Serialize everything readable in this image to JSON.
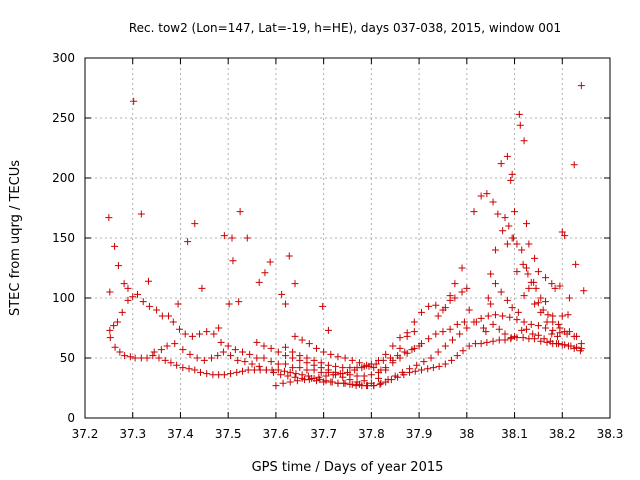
{
  "chart_data": {
    "type": "scatter",
    "title": "Rec. tow2 (Lon=147, Lat=-19, h=HE), days 037-038, 2015, window 001",
    "xlabel": "GPS time / Days of year 2015",
    "ylabel": "STEC from uqrg / TECUs",
    "xlim": [
      37.2,
      38.3
    ],
    "ylim": [
      0,
      300
    ],
    "x_ticks": [
      "37.2",
      "37.3",
      "37.4",
      "37.5",
      "37.6",
      "37.7",
      "37.8",
      "37.9",
      "38",
      "38.1",
      "38.2",
      "38.3"
    ],
    "y_ticks": [
      "0",
      "50",
      "100",
      "150",
      "200",
      "250",
      "300"
    ],
    "grid": true,
    "legend": "none",
    "marker": "plus",
    "point_color": "#cc0000",
    "points": [
      [
        37.25,
        167
      ],
      [
        37.252,
        105
      ],
      [
        37.262,
        143
      ],
      [
        37.27,
        127
      ],
      [
        37.282,
        112
      ],
      [
        37.29,
        108
      ],
      [
        37.302,
        264
      ],
      [
        37.318,
        170
      ],
      [
        37.333,
        114
      ],
      [
        37.395,
        95
      ],
      [
        37.415,
        147
      ],
      [
        37.43,
        162
      ],
      [
        37.445,
        108
      ],
      [
        37.48,
        75
      ],
      [
        37.492,
        152
      ],
      [
        37.502,
        95
      ],
      [
        37.508,
        150
      ],
      [
        37.51,
        131
      ],
      [
        37.522,
        97
      ],
      [
        37.525,
        172
      ],
      [
        37.54,
        150
      ],
      [
        37.565,
        113
      ],
      [
        37.577,
        121
      ],
      [
        37.588,
        130
      ],
      [
        37.612,
        103
      ],
      [
        37.62,
        95
      ],
      [
        37.628,
        135
      ],
      [
        37.64,
        112
      ],
      [
        37.698,
        93
      ],
      [
        37.71,
        73
      ],
      [
        37.252,
        73
      ],
      [
        37.26,
        77
      ],
      [
        37.268,
        80
      ],
      [
        37.278,
        88
      ],
      [
        37.29,
        98
      ],
      [
        37.3,
        101
      ],
      [
        37.31,
        103
      ],
      [
        37.322,
        97
      ],
      [
        37.335,
        93
      ],
      [
        37.35,
        90
      ],
      [
        37.362,
        85
      ],
      [
        37.375,
        85
      ],
      [
        37.385,
        80
      ],
      [
        37.398,
        74
      ],
      [
        37.41,
        70
      ],
      [
        37.425,
        68
      ],
      [
        37.44,
        70
      ],
      [
        37.455,
        72
      ],
      [
        37.47,
        70
      ],
      [
        37.485,
        63
      ],
      [
        37.5,
        60
      ],
      [
        37.515,
        57
      ],
      [
        37.53,
        55
      ],
      [
        37.545,
        53
      ],
      [
        37.56,
        50
      ],
      [
        37.575,
        50
      ],
      [
        37.59,
        47
      ],
      [
        37.605,
        45
      ],
      [
        37.62,
        45
      ],
      [
        37.635,
        42
      ],
      [
        37.65,
        42
      ],
      [
        37.665,
        40
      ],
      [
        37.68,
        40
      ],
      [
        37.695,
        38
      ],
      [
        37.71,
        38
      ],
      [
        37.725,
        36
      ],
      [
        37.74,
        34
      ],
      [
        37.755,
        32
      ],
      [
        37.77,
        30
      ],
      [
        37.785,
        31
      ],
      [
        37.8,
        29
      ],
      [
        37.815,
        33
      ],
      [
        37.83,
        40
      ],
      [
        37.845,
        48
      ],
      [
        37.86,
        58
      ],
      [
        37.875,
        68
      ],
      [
        37.89,
        80
      ],
      [
        37.905,
        88
      ],
      [
        37.92,
        93
      ],
      [
        37.935,
        94
      ],
      [
        37.95,
        90
      ],
      [
        37.965,
        102
      ],
      [
        37.975,
        112
      ],
      [
        37.99,
        125
      ],
      [
        38.0,
        108
      ],
      [
        38.015,
        172
      ],
      [
        38.03,
        185
      ],
      [
        38.042,
        187
      ],
      [
        38.055,
        180
      ],
      [
        38.065,
        170
      ],
      [
        38.075,
        156
      ],
      [
        38.085,
        145
      ],
      [
        38.095,
        150
      ],
      [
        38.105,
        145
      ],
      [
        38.115,
        140
      ],
      [
        38.125,
        125
      ],
      [
        38.135,
        113
      ],
      [
        38.145,
        108
      ],
      [
        38.155,
        100
      ],
      [
        38.165,
        97
      ],
      [
        38.18,
        85
      ],
      [
        38.195,
        75
      ],
      [
        38.205,
        72
      ],
      [
        38.215,
        72
      ],
      [
        38.23,
        68
      ],
      [
        38.24,
        62
      ],
      [
        37.253,
        67
      ],
      [
        37.263,
        59
      ],
      [
        37.273,
        55
      ],
      [
        37.283,
        52
      ],
      [
        37.295,
        51
      ],
      [
        37.305,
        50
      ],
      [
        37.318,
        50
      ],
      [
        37.33,
        50
      ],
      [
        37.342,
        52
      ],
      [
        37.355,
        50
      ],
      [
        37.368,
        48
      ],
      [
        37.38,
        46
      ],
      [
        37.392,
        44
      ],
      [
        37.405,
        42
      ],
      [
        37.418,
        41
      ],
      [
        37.43,
        40
      ],
      [
        37.442,
        38
      ],
      [
        37.455,
        37
      ],
      [
        37.468,
        36
      ],
      [
        37.48,
        36
      ],
      [
        37.492,
        36
      ],
      [
        37.505,
        37
      ],
      [
        37.518,
        38
      ],
      [
        37.53,
        39
      ],
      [
        37.542,
        40
      ],
      [
        37.555,
        40
      ],
      [
        37.567,
        40
      ],
      [
        37.58,
        40
      ],
      [
        37.592,
        40
      ],
      [
        37.605,
        40
      ],
      [
        37.618,
        39
      ],
      [
        37.63,
        38
      ],
      [
        37.642,
        37
      ],
      [
        37.655,
        36
      ],
      [
        37.668,
        35
      ],
      [
        37.68,
        33
      ],
      [
        37.692,
        32
      ],
      [
        37.705,
        31
      ],
      [
        37.718,
        30
      ],
      [
        37.73,
        29
      ],
      [
        37.742,
        29
      ],
      [
        37.755,
        28
      ],
      [
        37.768,
        27
      ],
      [
        37.78,
        27
      ],
      [
        37.792,
        27
      ],
      [
        37.805,
        27
      ],
      [
        37.818,
        28
      ],
      [
        37.83,
        30
      ],
      [
        37.842,
        32
      ],
      [
        37.855,
        34
      ],
      [
        37.868,
        36
      ],
      [
        37.88,
        38
      ],
      [
        37.892,
        39
      ],
      [
        37.905,
        40
      ],
      [
        37.918,
        41
      ],
      [
        37.93,
        42
      ],
      [
        37.942,
        43
      ],
      [
        37.955,
        45
      ],
      [
        37.968,
        48
      ],
      [
        37.98,
        52
      ],
      [
        37.992,
        56
      ],
      [
        38.005,
        60
      ],
      [
        38.018,
        62
      ],
      [
        38.03,
        62
      ],
      [
        38.042,
        63
      ],
      [
        38.055,
        64
      ],
      [
        38.068,
        65
      ],
      [
        38.08,
        65
      ],
      [
        38.092,
        66
      ],
      [
        38.105,
        67
      ],
      [
        38.118,
        67
      ],
      [
        38.13,
        66
      ],
      [
        38.142,
        66
      ],
      [
        38.155,
        64
      ],
      [
        38.168,
        63
      ],
      [
        38.18,
        62
      ],
      [
        38.192,
        62
      ],
      [
        38.205,
        61
      ],
      [
        38.218,
        60
      ],
      [
        38.23,
        59
      ],
      [
        38.24,
        58
      ],
      [
        37.345,
        55
      ],
      [
        37.36,
        57
      ],
      [
        37.372,
        60
      ],
      [
        37.388,
        62
      ],
      [
        37.405,
        57
      ],
      [
        37.42,
        53
      ],
      [
        37.435,
        50
      ],
      [
        37.45,
        48
      ],
      [
        37.465,
        50
      ],
      [
        37.478,
        52
      ],
      [
        37.49,
        55
      ],
      [
        37.505,
        52
      ],
      [
        37.52,
        48
      ],
      [
        37.535,
        47
      ],
      [
        37.55,
        45
      ],
      [
        37.565,
        43
      ],
      [
        37.58,
        40
      ],
      [
        37.595,
        38
      ],
      [
        37.61,
        36
      ],
      [
        37.625,
        35
      ],
      [
        37.64,
        34
      ],
      [
        37.655,
        33
      ],
      [
        37.67,
        32
      ],
      [
        37.685,
        31
      ],
      [
        37.7,
        30
      ],
      [
        37.715,
        30
      ],
      [
        37.73,
        29
      ],
      [
        37.745,
        29
      ],
      [
        37.76,
        28
      ],
      [
        37.775,
        28
      ],
      [
        37.79,
        27
      ],
      [
        37.805,
        27
      ],
      [
        37.82,
        29
      ],
      [
        37.835,
        32
      ],
      [
        37.85,
        35
      ],
      [
        37.865,
        38
      ],
      [
        37.88,
        41
      ],
      [
        37.895,
        44
      ],
      [
        37.91,
        47
      ],
      [
        37.925,
        50
      ],
      [
        37.94,
        55
      ],
      [
        37.955,
        60
      ],
      [
        37.97,
        65
      ],
      [
        37.985,
        70
      ],
      [
        38.0,
        75
      ],
      [
        38.015,
        80
      ],
      [
        38.03,
        83
      ],
      [
        38.045,
        85
      ],
      [
        38.06,
        86
      ],
      [
        38.075,
        85
      ],
      [
        38.09,
        84
      ],
      [
        38.105,
        82
      ],
      [
        38.12,
        80
      ],
      [
        38.135,
        78
      ],
      [
        38.15,
        77
      ],
      [
        38.165,
        75
      ],
      [
        38.18,
        73
      ],
      [
        38.195,
        71
      ],
      [
        38.21,
        70
      ],
      [
        38.225,
        68
      ],
      [
        37.56,
        63
      ],
      [
        37.575,
        60
      ],
      [
        37.59,
        58
      ],
      [
        37.605,
        55
      ],
      [
        37.62,
        52
      ],
      [
        37.635,
        50
      ],
      [
        37.65,
        48
      ],
      [
        37.665,
        46
      ],
      [
        37.68,
        44
      ],
      [
        37.695,
        42
      ],
      [
        37.71,
        40
      ],
      [
        37.725,
        38
      ],
      [
        37.74,
        37
      ],
      [
        37.755,
        36
      ],
      [
        37.77,
        35
      ],
      [
        37.785,
        35
      ],
      [
        37.8,
        36
      ],
      [
        37.815,
        38
      ],
      [
        37.83,
        42
      ],
      [
        37.845,
        46
      ],
      [
        37.86,
        50
      ],
      [
        37.875,
        54
      ],
      [
        37.89,
        58
      ],
      [
        37.905,
        62
      ],
      [
        37.92,
        66
      ],
      [
        37.935,
        70
      ],
      [
        37.95,
        72
      ],
      [
        37.965,
        74
      ],
      [
        37.98,
        78
      ],
      [
        37.995,
        80
      ],
      [
        37.6,
        27
      ],
      [
        37.615,
        29
      ],
      [
        37.63,
        30
      ],
      [
        37.645,
        31
      ],
      [
        37.66,
        32
      ],
      [
        37.675,
        33
      ],
      [
        37.69,
        34
      ],
      [
        37.705,
        35
      ],
      [
        37.72,
        36
      ],
      [
        37.735,
        37
      ],
      [
        37.75,
        38
      ],
      [
        37.765,
        40
      ],
      [
        37.78,
        42
      ],
      [
        37.795,
        43
      ],
      [
        37.81,
        45
      ],
      [
        37.825,
        48
      ],
      [
        37.84,
        50
      ],
      [
        37.855,
        52
      ],
      [
        37.87,
        55
      ],
      [
        37.885,
        57
      ],
      [
        37.9,
        60
      ],
      [
        37.62,
        59
      ],
      [
        37.635,
        55
      ],
      [
        37.65,
        52
      ],
      [
        37.665,
        50
      ],
      [
        37.68,
        48
      ],
      [
        37.695,
        46
      ],
      [
        37.71,
        44
      ],
      [
        37.725,
        43
      ],
      [
        37.74,
        42
      ],
      [
        37.755,
        42
      ],
      [
        37.77,
        42
      ],
      [
        37.785,
        43
      ],
      [
        37.8,
        45
      ],
      [
        37.815,
        48
      ],
      [
        37.83,
        53
      ],
      [
        37.845,
        60
      ],
      [
        37.86,
        67
      ],
      [
        37.875,
        71
      ],
      [
        37.89,
        72
      ],
      [
        37.64,
        68
      ],
      [
        37.655,
        65
      ],
      [
        37.67,
        62
      ],
      [
        37.685,
        58
      ],
      [
        37.7,
        55
      ],
      [
        37.715,
        53
      ],
      [
        37.73,
        51
      ],
      [
        37.745,
        50
      ],
      [
        37.76,
        48
      ],
      [
        37.775,
        46
      ],
      [
        37.79,
        44
      ],
      [
        37.805,
        42
      ],
      [
        37.82,
        40
      ],
      [
        38.05,
        120
      ],
      [
        38.06,
        140
      ],
      [
        38.072,
        212
      ],
      [
        38.085,
        218
      ],
      [
        38.092,
        198
      ],
      [
        38.095,
        203
      ],
      [
        38.1,
        172
      ],
      [
        38.11,
        253
      ],
      [
        38.112,
        244
      ],
      [
        38.12,
        231
      ],
      [
        38.125,
        162
      ],
      [
        38.13,
        145
      ],
      [
        38.142,
        133
      ],
      [
        38.15,
        122
      ],
      [
        38.165,
        117
      ],
      [
        38.178,
        112
      ],
      [
        38.185,
        108
      ],
      [
        38.195,
        110
      ],
      [
        38.2,
        155
      ],
      [
        38.205,
        152
      ],
      [
        38.215,
        100
      ],
      [
        38.225,
        211
      ],
      [
        38.228,
        128
      ],
      [
        38.24,
        277
      ],
      [
        38.245,
        106
      ],
      [
        38.08,
        167
      ],
      [
        38.088,
        160
      ],
      [
        38.098,
        150
      ],
      [
        38.105,
        122
      ],
      [
        38.118,
        128
      ],
      [
        38.128,
        120
      ],
      [
        38.14,
        113
      ],
      [
        38.15,
        96
      ],
      [
        38.16,
        90
      ],
      [
        38.17,
        86
      ],
      [
        38.18,
        80
      ],
      [
        38.192,
        78
      ],
      [
        38.2,
        85
      ],
      [
        38.212,
        86
      ],
      [
        38.06,
        112
      ],
      [
        38.072,
        105
      ],
      [
        38.085,
        98
      ],
      [
        38.095,
        92
      ],
      [
        38.108,
        88
      ],
      [
        38.12,
        102
      ],
      [
        38.13,
        108
      ],
      [
        38.142,
        95
      ],
      [
        38.155,
        88
      ],
      [
        38.168,
        80
      ],
      [
        38.178,
        70
      ],
      [
        38.19,
        68
      ],
      [
        38.04,
        72
      ],
      [
        38.055,
        78
      ],
      [
        38.068,
        74
      ],
      [
        38.08,
        70
      ],
      [
        38.093,
        67
      ],
      [
        38.1,
        68
      ],
      [
        38.115,
        73
      ],
      [
        38.125,
        74
      ],
      [
        38.138,
        70
      ],
      [
        38.15,
        69
      ],
      [
        38.162,
        66
      ],
      [
        38.175,
        64
      ],
      [
        38.188,
        62
      ],
      [
        38.2,
        61
      ],
      [
        38.213,
        60
      ],
      [
        38.225,
        58
      ],
      [
        38.238,
        56
      ],
      [
        37.94,
        85
      ],
      [
        37.955,
        92
      ],
      [
        37.965,
        98
      ],
      [
        37.975,
        100
      ],
      [
        37.99,
        105
      ],
      [
        38.005,
        90
      ],
      [
        38.02,
        80
      ],
      [
        38.035,
        75
      ],
      [
        38.045,
        100
      ],
      [
        38.05,
        95
      ]
    ]
  }
}
